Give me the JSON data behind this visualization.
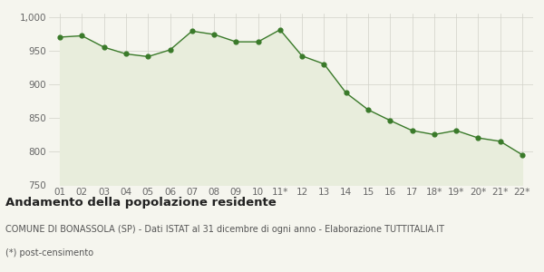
{
  "x_labels": [
    "01",
    "02",
    "03",
    "04",
    "05",
    "06",
    "07",
    "08",
    "09",
    "10",
    "11*",
    "12",
    "13",
    "14",
    "15",
    "16",
    "17",
    "18*",
    "19*",
    "20*",
    "21*",
    "22*"
  ],
  "y_values": [
    970,
    972,
    955,
    945,
    941,
    951,
    979,
    974,
    963,
    963,
    981,
    942,
    930,
    887,
    862,
    846,
    831,
    825,
    831,
    820,
    815,
    795
  ],
  "line_color": "#3a7a2a",
  "fill_color": "#e8eddc",
  "marker_color": "#3a7a2a",
  "bg_color": "#f5f5ee",
  "grid_color": "#d0d0c8",
  "ylim": [
    750,
    1005
  ],
  "yticks": [
    750,
    800,
    850,
    900,
    950,
    1000
  ],
  "ytick_labels": [
    "750",
    "800",
    "850",
    "900",
    "950",
    "1,000"
  ],
  "title": "Andamento della popolazione residente",
  "subtitle": "COMUNE DI BONASSOLA (SP) - Dati ISTAT al 31 dicembre di ogni anno - Elaborazione TUTTITALIA.IT",
  "footnote": "(*) post-censimento",
  "title_fontsize": 9.5,
  "subtitle_fontsize": 7,
  "footnote_fontsize": 7,
  "tick_fontsize": 7.5
}
